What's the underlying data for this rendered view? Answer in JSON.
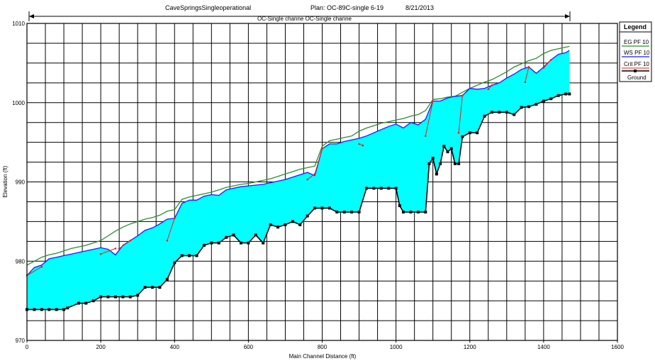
{
  "header": {
    "title": "CaveSpringsSingleoperational",
    "plan": "Plan: OC-89C-single 6-19",
    "date": "8/21/2013",
    "reach_label": "OC-Single channe OC-Single channe"
  },
  "legend": {
    "title": "Legend",
    "items": [
      {
        "label": "EG PF 10",
        "color": "#2e8b2e"
      },
      {
        "label": "WS PF 10",
        "color": "#1a1aff"
      },
      {
        "label": "Crit PF 10",
        "color": "#e0201e"
      },
      {
        "label": "Ground",
        "color": "#000000"
      }
    ]
  },
  "colors": {
    "water_fill": "#00ffff",
    "grid": "#000000"
  },
  "chart_data": {
    "type": "line",
    "title": "CaveSpringsSingleoperational",
    "xlabel": "Main Channel Distance (ft)",
    "ylabel": "Elevation (ft)",
    "xlim": [
      0,
      1600
    ],
    "ylim": [
      970,
      1010
    ],
    "grid": true,
    "legend_position": "top-right",
    "x_ticks": [
      0,
      200,
      400,
      600,
      800,
      1000,
      1200,
      1400,
      1600
    ],
    "y_ticks": [
      970,
      980,
      990,
      1000,
      1010
    ],
    "y_tick_labels": [
      "970",
      "980",
      "990",
      "1000",
      "1010"
    ],
    "series": [
      {
        "name": "Ground",
        "x": [
          0,
          20,
          40,
          60,
          80,
          100,
          110,
          140,
          160,
          180,
          200,
          220,
          240,
          260,
          280,
          300,
          320,
          340,
          360,
          380,
          400,
          420,
          440,
          460,
          480,
          500,
          520,
          540,
          560,
          580,
          600,
          620,
          640,
          660,
          680,
          700,
          720,
          740,
          760,
          780,
          800,
          820,
          840,
          860,
          880,
          900,
          920,
          940,
          960,
          980,
          1000,
          1010,
          1020,
          1040,
          1060,
          1080,
          1090,
          1100,
          1110,
          1120,
          1130,
          1140,
          1150,
          1160,
          1170,
          1180,
          1200,
          1220,
          1240,
          1260,
          1280,
          1300,
          1320,
          1340,
          1360,
          1380,
          1400,
          1420,
          1440,
          1460,
          1470
        ],
        "y": [
          973.9,
          973.9,
          973.9,
          973.9,
          973.9,
          973.9,
          974.1,
          974.7,
          974.7,
          975.0,
          975.5,
          975.5,
          975.5,
          975.5,
          975.5,
          975.7,
          976.7,
          976.7,
          976.7,
          977.7,
          979.8,
          980.7,
          980.7,
          980.7,
          982.0,
          982.3,
          982.3,
          983.0,
          983.3,
          982.3,
          982.3,
          983.3,
          982.3,
          984.6,
          984.3,
          984.6,
          985.0,
          984.6,
          985.7,
          986.7,
          986.7,
          986.7,
          986.2,
          986.2,
          986.2,
          986.2,
          989.2,
          989.2,
          989.2,
          989.2,
          989.2,
          987.0,
          986.2,
          986.2,
          986.2,
          986.2,
          992.3,
          993.0,
          991.0,
          992.3,
          994.5,
          993.8,
          994.2,
          992.3,
          992.3,
          995.7,
          996.2,
          996.2,
          998.3,
          998.8,
          998.8,
          998.8,
          998.5,
          999.4,
          999.5,
          999.8,
          1000.2,
          1000.5,
          1000.9,
          1001.1,
          1001.1
        ]
      },
      {
        "name": "WS PF 10",
        "x": [
          0,
          20,
          40,
          60,
          80,
          100,
          120,
          140,
          160,
          180,
          200,
          220,
          240,
          260,
          280,
          300,
          320,
          340,
          360,
          380,
          400,
          420,
          440,
          460,
          480,
          500,
          520,
          540,
          560,
          580,
          600,
          620,
          640,
          660,
          680,
          700,
          720,
          740,
          760,
          780,
          800,
          820,
          840,
          860,
          880,
          900,
          920,
          940,
          960,
          980,
          1000,
          1020,
          1040,
          1060,
          1080,
          1100,
          1120,
          1140,
          1160,
          1180,
          1200,
          1220,
          1240,
          1260,
          1280,
          1300,
          1320,
          1340,
          1360,
          1380,
          1400,
          1420,
          1440,
          1460,
          1470
        ],
        "y": [
          978.2,
          979.2,
          979.5,
          980.3,
          980.5,
          980.7,
          980.9,
          981.1,
          981.3,
          981.5,
          981.7,
          981.5,
          980.8,
          982.0,
          982.6,
          983.2,
          983.9,
          984.2,
          984.7,
          985.3,
          985.4,
          987.3,
          987.7,
          987.7,
          988.2,
          988.4,
          988.3,
          989.0,
          989.2,
          989.4,
          989.5,
          989.6,
          989.7,
          989.9,
          990.1,
          990.3,
          990.6,
          990.9,
          991.2,
          990.8,
          994.2,
          994.8,
          994.8,
          995.1,
          995.3,
          995.5,
          995.8,
          996.2,
          996.6,
          997.0,
          997.3,
          996.8,
          997.5,
          997.2,
          997.9,
          1000.2,
          1000.2,
          1000.6,
          1000.8,
          1000.9,
          1001.8,
          1001.7,
          1001.8,
          1002.2,
          1002.5,
          1003.1,
          1003.6,
          1004.2,
          1004.5,
          1003.7,
          1004.5,
          1005.4,
          1006.1,
          1006.3,
          1006.6
        ]
      },
      {
        "name": "EG PF 10",
        "x": [
          0,
          20,
          40,
          60,
          80,
          100,
          120,
          140,
          160,
          180,
          200,
          220,
          240,
          260,
          280,
          300,
          320,
          340,
          360,
          380,
          400,
          420,
          440,
          460,
          480,
          500,
          520,
          540,
          560,
          580,
          600,
          620,
          640,
          660,
          680,
          700,
          720,
          740,
          760,
          780,
          800,
          820,
          840,
          860,
          880,
          900,
          920,
          940,
          960,
          980,
          1000,
          1020,
          1040,
          1060,
          1080,
          1100,
          1120,
          1140,
          1160,
          1180,
          1200,
          1220,
          1240,
          1260,
          1280,
          1300,
          1320,
          1340,
          1360,
          1380,
          1400,
          1420,
          1440,
          1460,
          1470
        ],
        "y": [
          979.5,
          980.0,
          980.5,
          980.8,
          981.0,
          981.3,
          981.6,
          981.8,
          982.0,
          982.3,
          982.6,
          983.2,
          983.8,
          984.3,
          984.7,
          985.0,
          985.3,
          985.5,
          985.8,
          986.3,
          986.5,
          987.8,
          988.1,
          988.3,
          988.5,
          988.7,
          989.0,
          989.3,
          989.5,
          989.7,
          989.8,
          990.0,
          990.2,
          990.4,
          990.7,
          991.0,
          991.3,
          991.6,
          991.8,
          992.0,
          994.5,
          995.2,
          995.4,
          995.6,
          995.8,
          996.4,
          996.8,
          997.1,
          997.4,
          997.6,
          997.8,
          998.0,
          998.3,
          998.5,
          999.0,
          1000.4,
          1000.5,
          1000.7,
          1000.8,
          1001.3,
          1001.8,
          1002.2,
          1002.6,
          1002.9,
          1003.4,
          1003.9,
          1004.5,
          1004.9,
          1005.3,
          1005.6,
          1006.2,
          1006.6,
          1006.8,
          1007.0,
          1007.1
        ]
      },
      {
        "name": "Crit PF 10",
        "segments": [
          {
            "x": [
              0,
              40
            ],
            "y": [
              978.2,
              979.3
            ]
          },
          {
            "x": [
              200,
              240
            ],
            "y": [
              980.9,
              981.6
            ]
          },
          {
            "x": [
              250,
              280
            ],
            "y": [
              981.6,
              982.6
            ]
          },
          {
            "x": [
              380,
              400
            ],
            "y": [
              982.6,
              985.4
            ]
          },
          {
            "x": [
              760,
              780
            ],
            "y": [
              990.3,
              991.0
            ]
          },
          {
            "x": [
              780,
              800
            ],
            "y": [
              991.0,
              994.2
            ]
          },
          {
            "x": [
              900,
              910
            ],
            "y": [
              994.8,
              994.6
            ]
          },
          {
            "x": [
              1080,
              1100
            ],
            "y": [
              995.8,
              1000.2
            ]
          },
          {
            "x": [
              1170,
              1180
            ],
            "y": [
              996.2,
              1000.9
            ]
          },
          {
            "x": [
              1250,
              1260
            ],
            "y": [
              1001.7,
              1002.2
            ]
          },
          {
            "x": [
              1350,
              1360
            ],
            "y": [
              1002.6,
              1004.5
            ]
          },
          {
            "x": [
              1400,
              1420
            ],
            "y": [
              1004.4,
              1005.4
            ]
          }
        ]
      }
    ]
  }
}
